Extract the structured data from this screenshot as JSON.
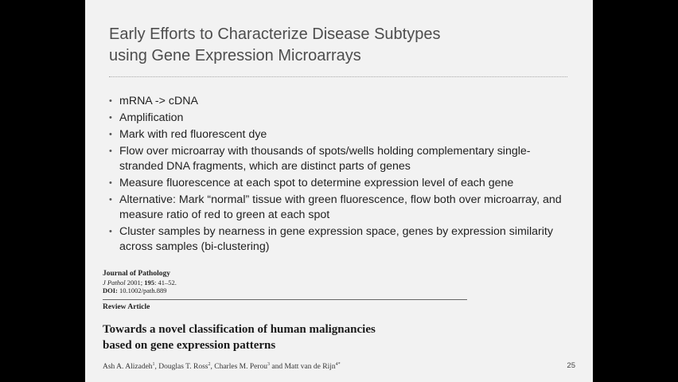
{
  "slide": {
    "title_line1": "Early Efforts to Characterize Disease Subtypes",
    "title_line2": "using Gene Expression Microarrays",
    "bullet_symbol": "•",
    "bullets": [
      "mRNA -> cDNA",
      "Amplification",
      "Mark with red fluorescent dye",
      "Flow over microarray with thousands of spots/wells holding complementary single-stranded DNA fragments, which are distinct parts of genes",
      "Measure fluorescence at each spot to determine expression level of each gene",
      "Alternative: Mark “normal” tissue with green fluorescence, flow both over microarray, and measure ratio of red to green at each spot",
      "Cluster samples by nearness in gene expression space, genes by expression similarity across samples (bi-clustering)"
    ],
    "page_number": "25"
  },
  "paper": {
    "journal": "Journal of Pathology",
    "citation_journal": "J Pathol",
    "citation_year": "2001;",
    "citation_volume": "195",
    "citation_pages": ": 41–52.",
    "doi_label": "DOI:",
    "doi_value": "10.1002/path.889",
    "article_type": "Review Article",
    "title_line1": "Towards a novel classification of human malignancies",
    "title_line2": "based on gene expression patterns",
    "authors": [
      {
        "name": "Ash A. Alizadeh",
        "sup": "1",
        "sep": ", "
      },
      {
        "name": "Douglas T. Ross",
        "sup": "2",
        "sep": ", "
      },
      {
        "name": "Charles M. Perou",
        "sup": "3",
        "sep": " and "
      },
      {
        "name": "Matt van de Rijn",
        "sup": "4*",
        "sep": ""
      }
    ]
  }
}
